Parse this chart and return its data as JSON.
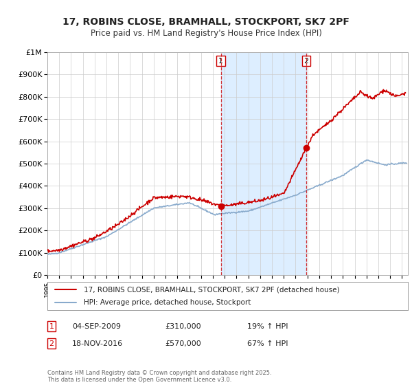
{
  "title": "17, ROBINS CLOSE, BRAMHALL, STOCKPORT, SK7 2PF",
  "subtitle": "Price paid vs. HM Land Registry's House Price Index (HPI)",
  "legend_line1": "17, ROBINS CLOSE, BRAMHALL, STOCKPORT, SK7 2PF (detached house)",
  "legend_line2": "HPI: Average price, detached house, Stockport",
  "property_color": "#cc0000",
  "hpi_color": "#88aacc",
  "annotation_color": "#cc0000",
  "sale1_year": 2009.67,
  "sale1_price": 310000,
  "sale2_year": 2016.9,
  "sale2_price": 570000,
  "footer": "Contains HM Land Registry data © Crown copyright and database right 2025.\nThis data is licensed under the Open Government Licence v3.0.",
  "ylim": [
    0,
    1000000
  ],
  "xlim_start": 1995.0,
  "xlim_end": 2025.5,
  "background_color": "#ffffff",
  "shade_color": "#ddeeff",
  "grid_color": "#cccccc",
  "title_fontsize": 10,
  "subtitle_fontsize": 8.5,
  "tick_fontsize": 7,
  "ytick_fontsize": 8
}
